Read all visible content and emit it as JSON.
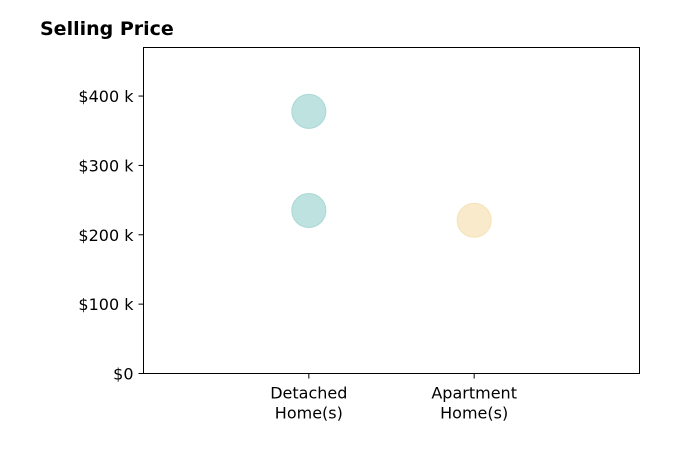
{
  "chart_data": {
    "type": "scatter",
    "title": "Selling Price",
    "xlabel": "",
    "ylabel": "",
    "categories": [
      [
        "Detached",
        "Home(s)"
      ],
      [
        "Apartment",
        "Home(s)"
      ]
    ],
    "xlim": [
      -1,
      2
    ],
    "ylim": [
      0,
      470000
    ],
    "y_ticks": [
      {
        "value": 0,
        "label": "$0"
      },
      {
        "value": 100000,
        "label": "$100 k"
      },
      {
        "value": 200000,
        "label": "$200 k"
      },
      {
        "value": 300000,
        "label": "$300 k"
      },
      {
        "value": 400000,
        "label": "$400 k"
      }
    ],
    "grid": false,
    "points": [
      {
        "category": 0,
        "y": 378000,
        "color": "#a8d8d4"
      },
      {
        "category": 0,
        "y": 235000,
        "color": "#a8d8d4"
      },
      {
        "category": 1,
        "y": 221000,
        "color": "#f5e3b8"
      }
    ]
  }
}
